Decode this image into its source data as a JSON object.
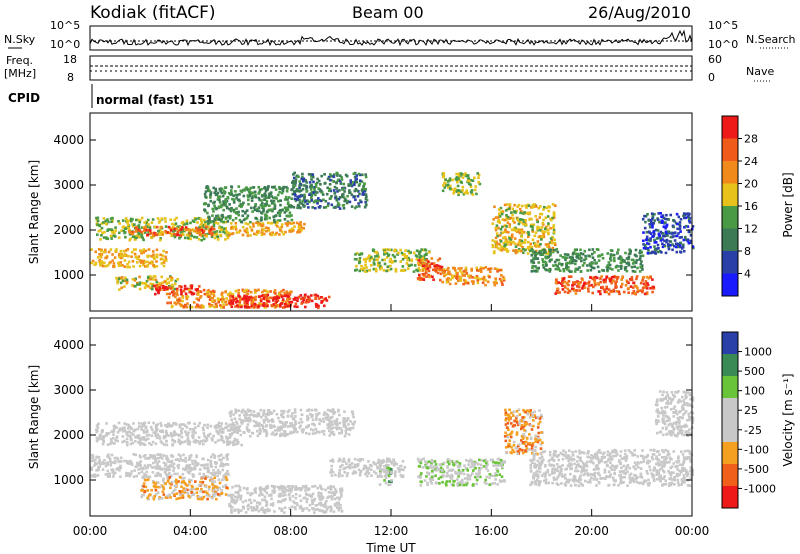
{
  "header": {
    "station": "Kodiak (fitACF)",
    "beam": "Beam 00",
    "date": "26/Aug/2010"
  },
  "summary": {
    "nsky_label": "N.Sky",
    "nsearch_label": "N.Search",
    "left_ticks": [
      "10^5",
      "10^0"
    ],
    "right_ticks": [
      "10^5",
      "10^0"
    ],
    "freq_label": "Freq.",
    "freq_unit": "[MHz]",
    "freq_ticks": [
      "18",
      "8"
    ],
    "nave_label": "Nave",
    "nave_ticks": [
      "60",
      "0"
    ],
    "cpid_label": "CPID",
    "cpid_value": "normal (fast) 151"
  },
  "x_axis": {
    "label": "Time UT",
    "ticks": [
      "00:00",
      "04:00",
      "08:00",
      "12:00",
      "16:00",
      "20:00",
      "00:00"
    ]
  },
  "y_axis": {
    "label": "Slant Range [km]",
    "ticks": [
      "1000",
      "2000",
      "3000",
      "4000"
    ]
  },
  "colors": {
    "power": [
      "#1a1aff",
      "#2a3fa8",
      "#3b7a55",
      "#4a9a45",
      "#e6c21a",
      "#f08a1a",
      "#f05a1a",
      "#ee1a1a"
    ],
    "velocity": [
      "#ee1a1a",
      "#f0601a",
      "#f5a020",
      "#c8c8c8",
      "#c8c8c8",
      "#6ac43a",
      "#3a8a55",
      "#2a3fa8"
    ]
  },
  "power_bar": {
    "label": "Power [dB]",
    "ticks": [
      "4",
      "8",
      "12",
      "16",
      "20",
      "24",
      "28"
    ]
  },
  "velocity_bar": {
    "label": "Velocity [m s⁻¹]",
    "ticks": [
      "-1000",
      "-500",
      "-100",
      "-25",
      "25",
      "100",
      "500",
      "1000"
    ]
  },
  "chart_data": {
    "type": "heatmap",
    "xlim_hours": [
      0,
      24
    ],
    "ylim_km": [
      200,
      4600
    ],
    "panels": [
      {
        "quantity": "power_dB",
        "range": [
          0,
          32
        ],
        "blobs": [
          {
            "t0": 0.2,
            "t1": 5.5,
            "r0": 1800,
            "r1": 2300,
            "v": 16
          },
          {
            "t0": 1.5,
            "t1": 5.0,
            "r0": 1900,
            "r1": 2100,
            "v": 26
          },
          {
            "t0": 0.0,
            "t1": 3.0,
            "r0": 1200,
            "r1": 1600,
            "v": 20
          },
          {
            "t0": 1.0,
            "t1": 3.5,
            "r0": 700,
            "r1": 1000,
            "v": 18
          },
          {
            "t0": 2.5,
            "t1": 4.5,
            "r0": 600,
            "r1": 800,
            "v": 30
          },
          {
            "t0": 3.0,
            "t1": 8.0,
            "r0": 300,
            "r1": 700,
            "v": 22
          },
          {
            "t0": 5.5,
            "t1": 9.5,
            "r0": 300,
            "r1": 600,
            "v": 30
          },
          {
            "t0": 4.5,
            "t1": 8.0,
            "r0": 2200,
            "r1": 3000,
            "v": 12
          },
          {
            "t0": 5.5,
            "t1": 8.5,
            "r0": 1900,
            "r1": 2200,
            "v": 20
          },
          {
            "t0": 8.0,
            "t1": 11.0,
            "r0": 2500,
            "r1": 3300,
            "v": 10
          },
          {
            "t0": 10.5,
            "t1": 13.5,
            "r0": 1100,
            "r1": 1600,
            "v": 16
          },
          {
            "t0": 13.0,
            "t1": 14.0,
            "r0": 900,
            "r1": 1400,
            "v": 26
          },
          {
            "t0": 14.0,
            "t1": 16.5,
            "r0": 800,
            "r1": 1200,
            "v": 22
          },
          {
            "t0": 14.0,
            "t1": 15.5,
            "r0": 2800,
            "r1": 3300,
            "v": 16
          },
          {
            "t0": 16.0,
            "t1": 18.5,
            "r0": 1500,
            "r1": 2600,
            "v": 18
          },
          {
            "t0": 17.5,
            "t1": 22.0,
            "r0": 1100,
            "r1": 1600,
            "v": 12
          },
          {
            "t0": 18.5,
            "t1": 22.5,
            "r0": 600,
            "r1": 1000,
            "v": 26
          },
          {
            "t0": 22.0,
            "t1": 24.0,
            "r0": 1500,
            "r1": 2400,
            "v": 6
          }
        ]
      },
      {
        "quantity": "velocity_ms",
        "range": [
          -1000,
          1000
        ],
        "blobs": [
          {
            "t0": 0.2,
            "t1": 6.0,
            "r0": 1800,
            "r1": 2300,
            "v": 0
          },
          {
            "t0": 0.0,
            "t1": 5.5,
            "r0": 1100,
            "r1": 1600,
            "v": 0
          },
          {
            "t0": 2.0,
            "t1": 5.5,
            "r0": 600,
            "r1": 1100,
            "v": -300
          },
          {
            "t0": 5.5,
            "t1": 10.0,
            "r0": 300,
            "r1": 900,
            "v": 0
          },
          {
            "t0": 5.5,
            "t1": 10.5,
            "r0": 2000,
            "r1": 2600,
            "v": 0
          },
          {
            "t0": 9.5,
            "t1": 12.5,
            "r0": 1100,
            "r1": 1500,
            "v": 0
          },
          {
            "t0": 13.0,
            "t1": 16.5,
            "r0": 900,
            "r1": 1500,
            "v": 150
          },
          {
            "t0": 11.5,
            "t1": 12.0,
            "r0": 900,
            "r1": 1300,
            "v": 300
          },
          {
            "t0": 16.5,
            "t1": 18.0,
            "r0": 1600,
            "r1": 2600,
            "v": -400
          },
          {
            "t0": 17.5,
            "t1": 24.0,
            "r0": 900,
            "r1": 1700,
            "v": 0
          },
          {
            "t0": 22.5,
            "t1": 24.0,
            "r0": 2000,
            "r1": 3000,
            "v": 0
          }
        ]
      }
    ]
  }
}
